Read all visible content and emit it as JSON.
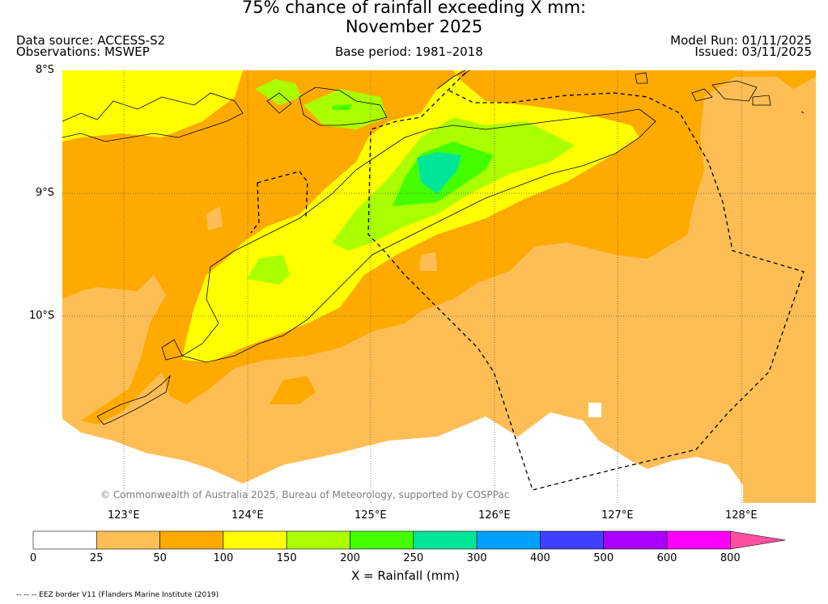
{
  "header": {
    "title_line1": "75% chance of rainfall exceeding X mm:",
    "title_line2": "November 2025",
    "data_source": "Data source: ACCESS-S2",
    "observations": "Observations: MSWEP",
    "base_period": "Base period: 1981–2018",
    "model_run": "Model Run: 01/11/2025",
    "issued": "Issued: 03/11/2025"
  },
  "map": {
    "lat_labels": [
      "8°S",
      "9°S",
      "10°S"
    ],
    "lon_labels": [
      "123°E",
      "124°E",
      "125°E",
      "126°E",
      "127°E",
      "128°E"
    ],
    "copyright": "© Commonwealth of Australia 2025, Bureau of Meteorology, supported by COSPPac"
  },
  "colorbar": {
    "ticks": [
      "0",
      "25",
      "50",
      "100",
      "150",
      "200",
      "250",
      "300",
      "400",
      "500",
      "600",
      "800"
    ],
    "colors": [
      "#ffffff",
      "#ffbe55",
      "#ffaa00",
      "#ffff00",
      "#aaff00",
      "#44ff00",
      "#00e698",
      "#00a0ff",
      "#4040ff",
      "#aa00ff",
      "#ff00ff",
      "#ff50a0"
    ],
    "xlabel": "X = Rainfall (mm)"
  },
  "footer": {
    "eez_note": "-- -- -- EEZ border V11 (Flanders Marine Institute (2019)"
  }
}
